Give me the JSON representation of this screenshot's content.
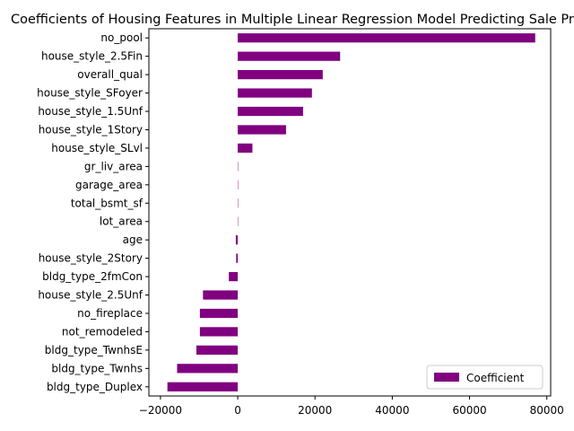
{
  "chart_data": {
    "type": "bar",
    "orientation": "horizontal",
    "title": "Coefficients of Housing Features in Multiple Linear Regression Model Predicting Sale Price",
    "xlabel": "",
    "ylabel": "",
    "xlim": [
      -23000,
      81000
    ],
    "xticks": [
      -20000,
      0,
      20000,
      40000,
      60000,
      80000
    ],
    "xtick_labels": [
      "−20000",
      "0",
      "20000",
      "40000",
      "60000",
      "80000"
    ],
    "grid": false,
    "legend_position": "lower right",
    "categories": [
      "no_pool",
      "house_style_2.5Fin",
      "overall_qual",
      "house_style_SFoyer",
      "house_style_1.5Unf",
      "house_style_1Story",
      "house_style_SLvl",
      "gr_liv_area",
      "garage_area",
      "total_bsmt_sf",
      "lot_area",
      "age",
      "house_style_2Story",
      "bldg_type_2fmCon",
      "house_style_2.5Unf",
      "no_fireplace",
      "not_remodeled",
      "bldg_type_TwnhsE",
      "bldg_type_Twnhs",
      "bldg_type_Duplex"
    ],
    "series": [
      {
        "name": "Coefficient",
        "color": "#800080",
        "values": [
          77000,
          26500,
          22000,
          19200,
          16900,
          12500,
          3800,
          60,
          50,
          40,
          5,
          -500,
          -400,
          -2300,
          -9000,
          -9800,
          -9800,
          -10700,
          -15700,
          -18200
        ]
      }
    ]
  }
}
